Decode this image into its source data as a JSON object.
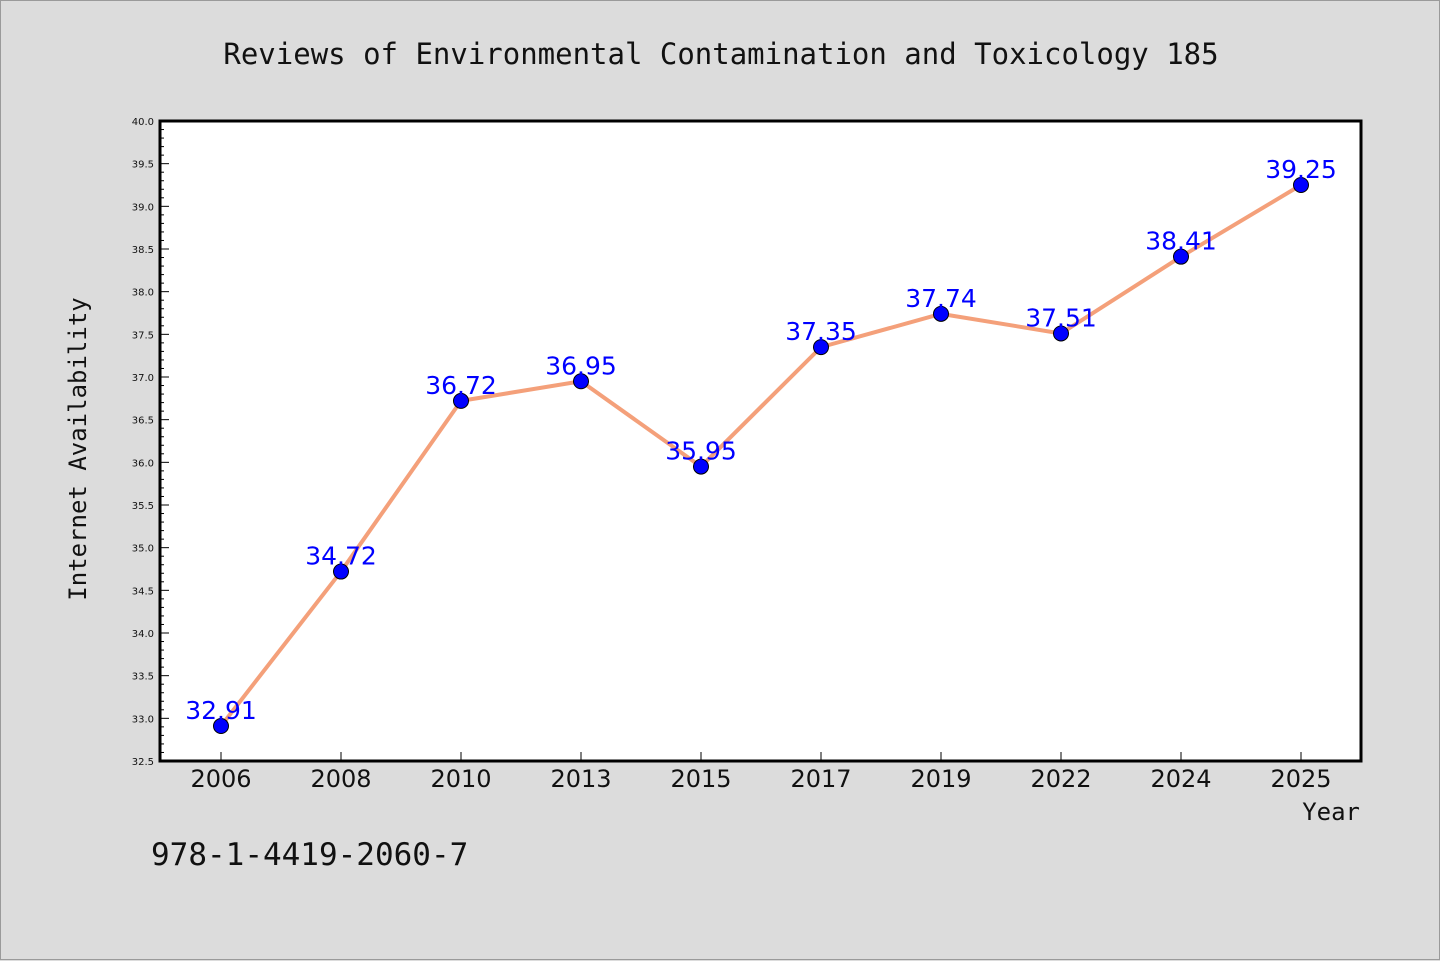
{
  "chart_data": {
    "type": "line",
    "title": "Reviews of Environmental Contamination and Toxicology 185",
    "xlabel": "Year",
    "ylabel": "Internet Availability",
    "categories": [
      "2006",
      "2008",
      "2010",
      "2013",
      "2015",
      "2017",
      "2019",
      "2022",
      "2024",
      "2025"
    ],
    "series": [
      {
        "values": [
          32.91,
          34.72,
          36.72,
          36.95,
          35.95,
          37.35,
          37.74,
          37.51,
          38.41,
          39.25
        ]
      }
    ],
    "data_labels": [
      "32.91",
      "34.72",
      "36.72",
      "36.95",
      "35.95",
      "37.35",
      "37.74",
      "37.51",
      "38.41",
      "39.25"
    ],
    "ylim": [
      32.5,
      40.0
    ],
    "yticks": [
      "32.5",
      "33.0",
      "33.5",
      "34.0",
      "34.5",
      "35.0",
      "35.5",
      "36.0",
      "36.5",
      "37.0",
      "37.5",
      "38.0",
      "38.5",
      "39.0",
      "39.5",
      "40.0"
    ],
    "grid": false,
    "legend": "none"
  },
  "footer": {
    "isbn": "978-1-4419-2060-7"
  },
  "colors": {
    "background": "#dcdcdc",
    "plot_background": "#ffffff",
    "line": "#f4a07a",
    "marker": "#0000ff",
    "data_label": "#0000ff"
  }
}
